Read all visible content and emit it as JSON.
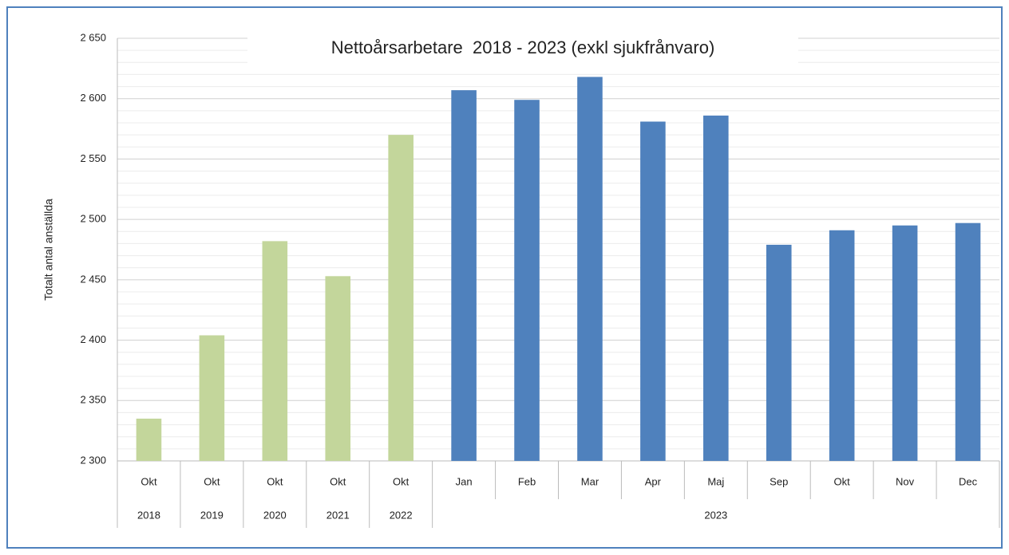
{
  "chart_data": {
    "type": "bar",
    "title": "Nettoårsarbetare  2018 - 2023 (exkl sjukfrånvaro)",
    "ylabel": "Totalt antal anställda",
    "groups": [
      {
        "name": "2018",
        "color": "#c3d69b",
        "categories": [
          "Okt"
        ],
        "values": [
          2335
        ]
      },
      {
        "name": "2019",
        "color": "#c3d69b",
        "categories": [
          "Okt"
        ],
        "values": [
          2404
        ]
      },
      {
        "name": "2020",
        "color": "#c3d69b",
        "categories": [
          "Okt"
        ],
        "values": [
          2482
        ]
      },
      {
        "name": "2021",
        "color": "#c3d69b",
        "categories": [
          "Okt"
        ],
        "values": [
          2453
        ]
      },
      {
        "name": "2022",
        "color": "#c3d69b",
        "categories": [
          "Okt"
        ],
        "values": [
          2570
        ]
      },
      {
        "name": "2023",
        "color": "#4f81bd",
        "categories": [
          "Jan",
          "Feb",
          "Mar",
          "Apr",
          "Maj",
          "Sep",
          "Okt",
          "Nov",
          "Dec"
        ],
        "values": [
          2607,
          2599,
          2618,
          2581,
          2586,
          2479,
          2491,
          2495,
          2497
        ]
      }
    ],
    "ylim": [
      2300,
      2650
    ],
    "yticks": [
      {
        "value": 2300,
        "label": "2 300"
      },
      {
        "value": 2350,
        "label": "2 350"
      },
      {
        "value": 2400,
        "label": "2 400"
      },
      {
        "value": 2450,
        "label": "2 450"
      },
      {
        "value": 2500,
        "label": "2 500"
      },
      {
        "value": 2550,
        "label": "2 550"
      },
      {
        "value": 2600,
        "label": "2 600"
      },
      {
        "value": 2650,
        "label": "2 650"
      }
    ],
    "minor_yticks": [
      2310,
      2320,
      2330,
      2340,
      2360,
      2370,
      2380,
      2390,
      2410,
      2420,
      2430,
      2440,
      2460,
      2470,
      2480,
      2490,
      2510,
      2520,
      2530,
      2540,
      2560,
      2570,
      2580,
      2590,
      2610,
      2620,
      2630,
      2640
    ],
    "grid": true
  }
}
